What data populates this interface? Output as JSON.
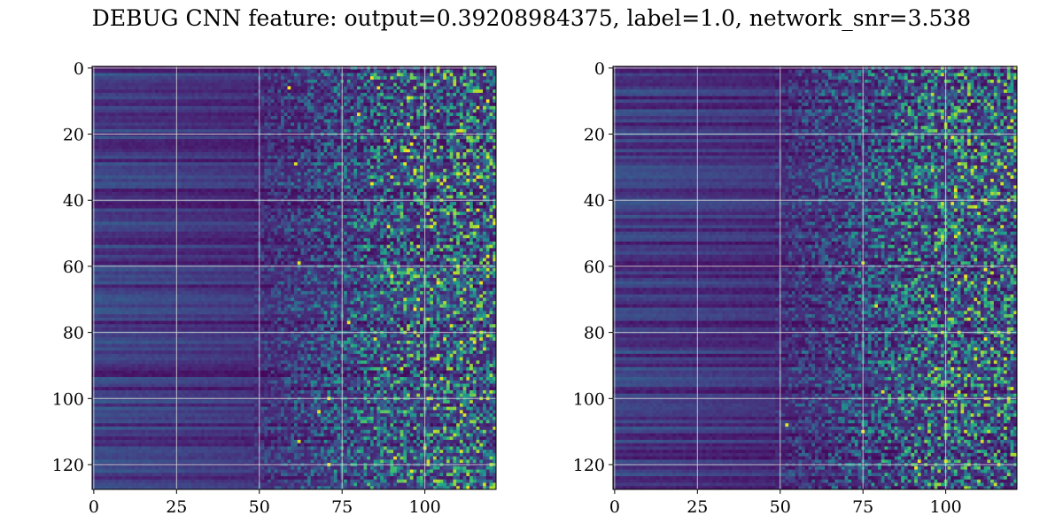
{
  "title": "DEBUG CNN feature: output=0.39208984375, label=1.0, network_snr=3.538",
  "chart_data": [
    {
      "type": "heatmap",
      "colormap": "viridis",
      "rows": 128,
      "cols": 122,
      "grid": true,
      "x_ticks": [
        0,
        25,
        50,
        75,
        100
      ],
      "y_ticks": [
        0,
        20,
        40,
        60,
        80,
        100,
        120
      ],
      "xlim": [
        -0.5,
        121.5
      ],
      "ylim": [
        127.5,
        -0.5
      ],
      "seed": 7
    },
    {
      "type": "heatmap",
      "colormap": "viridis",
      "rows": 128,
      "cols": 122,
      "grid": true,
      "x_ticks": [
        0,
        25,
        50,
        75,
        100
      ],
      "y_ticks": [
        0,
        20,
        40,
        60,
        80,
        100,
        120
      ],
      "xlim": [
        -0.5,
        121.5
      ],
      "ylim": [
        127.5,
        -0.5
      ],
      "seed": 23
    }
  ]
}
